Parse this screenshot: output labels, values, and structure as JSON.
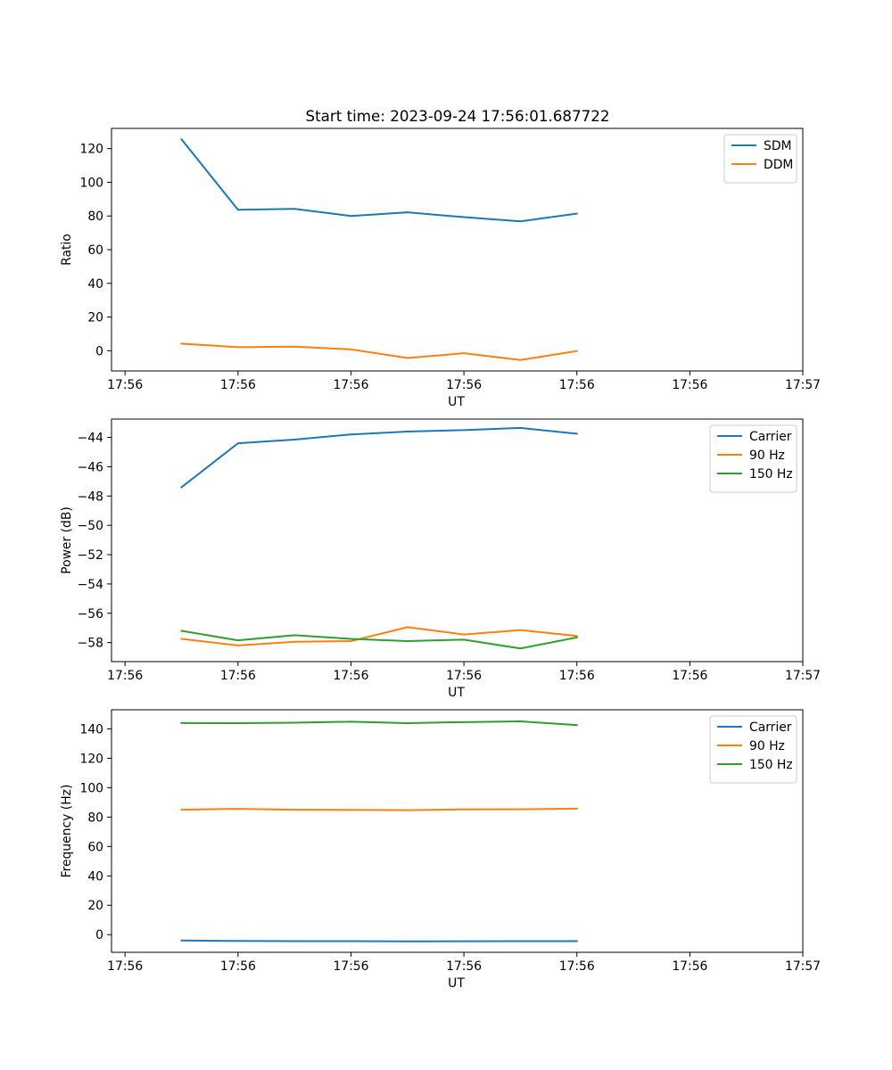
{
  "figure_title": "Start time: 2023-09-24 17:56:01.687722",
  "chart_data": [
    {
      "type": "line",
      "title": "Start time: 2023-09-24 17:56:01.687722",
      "xlabel": "UT",
      "ylabel": "Ratio",
      "x": [
        0.5,
        1,
        1.5,
        2,
        2.5,
        3,
        3.5,
        4
      ],
      "xlim": [
        -0.12,
        6
      ],
      "x_ticks": [
        0,
        1,
        2,
        3,
        4,
        5,
        6
      ],
      "x_tick_labels": [
        "17:56",
        "17:56",
        "17:56",
        "17:56",
        "17:56",
        "17:56",
        "17:57"
      ],
      "ylim": [
        -12,
        132
      ],
      "y_ticks": [
        0,
        20,
        40,
        60,
        80,
        100,
        120
      ],
      "y_tick_labels": [
        "0",
        "20",
        "40",
        "60",
        "80",
        "100",
        "120"
      ],
      "legend": "top-right",
      "grid": false,
      "series": [
        {
          "name": "SDM",
          "color": "#1f77b4",
          "values": [
            125.5,
            83.7,
            84.2,
            80.0,
            82.2,
            79.3,
            76.8,
            81.4
          ]
        },
        {
          "name": "DDM",
          "color": "#ff7f0e",
          "values": [
            4.2,
            2.1,
            2.4,
            0.8,
            -4.3,
            -1.5,
            -5.5,
            -0.2
          ]
        }
      ]
    },
    {
      "type": "line",
      "title": "",
      "xlabel": "UT",
      "ylabel": "Power (dB)",
      "x": [
        0.5,
        1,
        1.5,
        2,
        2.5,
        3,
        3.5,
        4
      ],
      "xlim": [
        -0.12,
        6
      ],
      "x_ticks": [
        0,
        1,
        2,
        3,
        4,
        5,
        6
      ],
      "x_tick_labels": [
        "17:56",
        "17:56",
        "17:56",
        "17:56",
        "17:56",
        "17:56",
        "17:57"
      ],
      "ylim": [
        -59.3,
        -42.75
      ],
      "y_ticks": [
        -58,
        -56,
        -54,
        -52,
        -50,
        -48,
        -46,
        -44
      ],
      "y_tick_labels": [
        "−58",
        "−56",
        "−54",
        "−52",
        "−50",
        "−48",
        "−46",
        "−44"
      ],
      "legend": "top-right",
      "grid": false,
      "series": [
        {
          "name": "Carrier",
          "color": "#1f77b4",
          "values": [
            -47.4,
            -44.4,
            -44.15,
            -43.8,
            -43.6,
            -43.5,
            -43.35,
            -43.75
          ]
        },
        {
          "name": "90 Hz",
          "color": "#ff7f0e",
          "values": [
            -57.75,
            -58.2,
            -57.95,
            -57.9,
            -56.95,
            -57.45,
            -57.15,
            -57.55
          ]
        },
        {
          "name": "150 Hz",
          "color": "#2ca02c",
          "values": [
            -57.2,
            -57.85,
            -57.5,
            -57.75,
            -57.9,
            -57.8,
            -58.4,
            -57.65
          ]
        }
      ]
    },
    {
      "type": "line",
      "title": "",
      "xlabel": "UT",
      "ylabel": "Frequency (Hz)",
      "x": [
        0.5,
        1,
        1.5,
        2,
        2.5,
        3,
        3.5,
        4
      ],
      "xlim": [
        -0.12,
        6
      ],
      "x_ticks": [
        0,
        1,
        2,
        3,
        4,
        5,
        6
      ],
      "x_tick_labels": [
        "17:56",
        "17:56",
        "17:56",
        "17:56",
        "17:56",
        "17:56",
        "17:57"
      ],
      "ylim": [
        -12,
        153
      ],
      "y_ticks": [
        0,
        20,
        40,
        60,
        80,
        100,
        120,
        140
      ],
      "y_tick_labels": [
        "0",
        "20",
        "40",
        "60",
        "80",
        "100",
        "120",
        "140"
      ],
      "legend": "top-right",
      "grid": false,
      "series": [
        {
          "name": "Carrier",
          "color": "#1f77b4",
          "values": [
            -4.0,
            -4.3,
            -4.4,
            -4.4,
            -4.6,
            -4.5,
            -4.4,
            -4.4
          ]
        },
        {
          "name": "90 Hz",
          "color": "#ff7f0e",
          "values": [
            85.0,
            85.6,
            85.0,
            84.9,
            84.7,
            85.2,
            85.3,
            85.7
          ]
        },
        {
          "name": "150 Hz",
          "color": "#2ca02c",
          "values": [
            144.0,
            143.9,
            144.2,
            144.9,
            143.9,
            144.6,
            145.1,
            142.6
          ]
        }
      ]
    }
  ]
}
